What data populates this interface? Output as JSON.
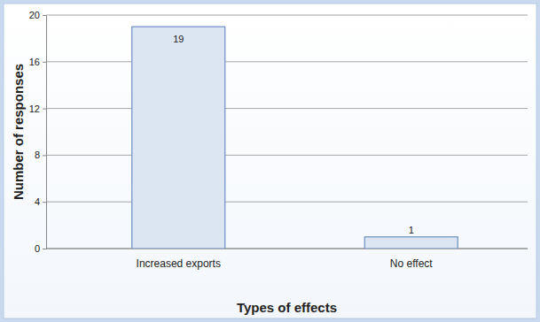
{
  "chart_data": {
    "type": "bar",
    "categories": [
      "Increased exports",
      "No effect"
    ],
    "values": [
      19,
      1
    ],
    "color": "#dce6f2",
    "x_label": "Types of effects",
    "y_label": "Number of responses",
    "ylim": [
      0,
      20
    ],
    "yticks": [
      0,
      4,
      8,
      12,
      16,
      20
    ],
    "grid": true,
    "data_labels": true
  }
}
